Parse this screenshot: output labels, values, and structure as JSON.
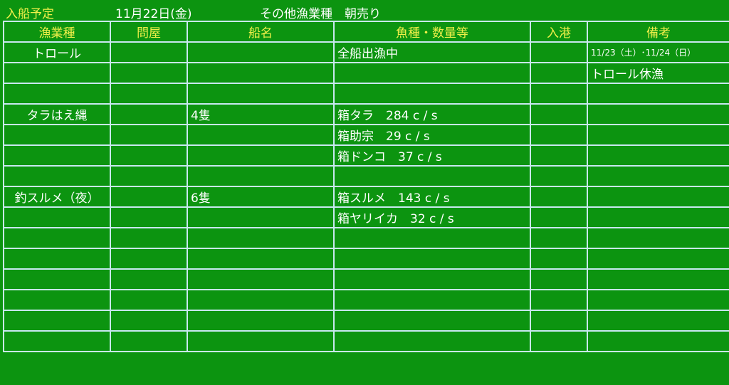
{
  "title": {
    "label": "入船予定",
    "date": "11月22日(金)",
    "category": "その他漁業種　朝売り"
  },
  "colors": {
    "background": "#0c9410",
    "header_text": "#f2f04a",
    "body_text": "#ffffff",
    "grid": "#c8e8f0"
  },
  "columns": [
    "漁業種",
    "問屋",
    "船名",
    "魚種・数量等",
    "入港",
    "備考"
  ],
  "rows": [
    [
      "トロール",
      "",
      "",
      "全船出漁中",
      "",
      "11/23（土）･11/24（日）"
    ],
    [
      "",
      "",
      "",
      "",
      "",
      "トロール休漁"
    ],
    [
      "",
      "",
      "",
      "",
      "",
      ""
    ],
    [
      "タラはえ縄",
      "",
      "4隻",
      "箱タラ　284 c / s",
      "",
      ""
    ],
    [
      "",
      "",
      "",
      "箱助宗　29 c / s",
      "",
      ""
    ],
    [
      "",
      "",
      "",
      "箱ドンコ　37 c / s",
      "",
      ""
    ],
    [
      "",
      "",
      "",
      "",
      "",
      ""
    ],
    [
      "釣スルメ（夜）",
      "",
      "6隻",
      "箱スルメ　143 c / s",
      "",
      ""
    ],
    [
      "",
      "",
      "",
      "箱ヤリイカ　32 c / s",
      "",
      ""
    ],
    [
      "",
      "",
      "",
      "",
      "",
      ""
    ],
    [
      "",
      "",
      "",
      "",
      "",
      ""
    ],
    [
      "",
      "",
      "",
      "",
      "",
      ""
    ],
    [
      "",
      "",
      "",
      "",
      "",
      ""
    ],
    [
      "",
      "",
      "",
      "",
      "",
      ""
    ],
    [
      "",
      "",
      "",
      "",
      "",
      ""
    ]
  ]
}
